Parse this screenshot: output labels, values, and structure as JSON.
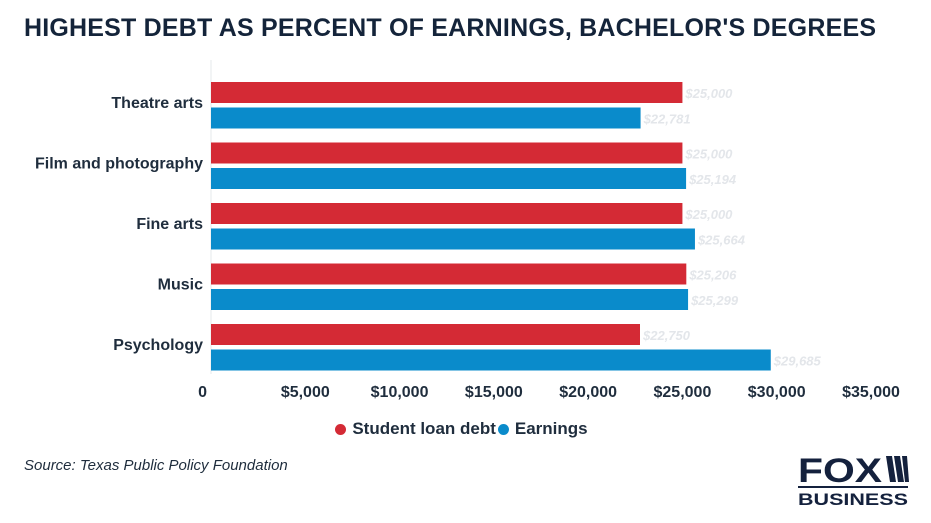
{
  "title": "HIGHEST DEBT AS PERCENT OF EARNINGS, BACHELOR'S DEGREES",
  "source": "Source: Texas Public Policy Foundation",
  "logo": {
    "line1": "FOX",
    "line2": "BUSINESS"
  },
  "colors": {
    "debt": "#d42a35",
    "earnings": "#0a8bcb",
    "value_label": "#e3e6ea",
    "axis_text": "#1f2d3d",
    "title": "#14243a",
    "logo": "#14213d"
  },
  "chart_data": {
    "type": "bar",
    "orientation": "horizontal",
    "categories": [
      "Theatre arts",
      "Film and photography",
      "Fine arts",
      "Music",
      "Psychology"
    ],
    "series": [
      {
        "name": "Student loan debt",
        "values": [
          25000,
          25000,
          25000,
          25206,
          22750
        ],
        "labels": [
          "$25,000",
          "$25,000",
          "$25,000",
          "$25,206",
          "$22,750"
        ]
      },
      {
        "name": "Earnings",
        "values": [
          22781,
          25194,
          25664,
          25299,
          29685
        ],
        "labels": [
          "$22,781",
          "$25,194",
          "$25,664",
          "$25,299",
          "$29,685"
        ]
      }
    ],
    "xlim": [
      0,
      35000
    ],
    "xticks": [
      0,
      5000,
      10000,
      15000,
      20000,
      25000,
      30000,
      35000
    ],
    "xtick_labels": [
      "0",
      "$5,000",
      "$10,000",
      "$15,000",
      "$20,000",
      "$25,000",
      "$30,000",
      "$35,000"
    ],
    "grid": false,
    "legend_position": "bottom-center"
  }
}
